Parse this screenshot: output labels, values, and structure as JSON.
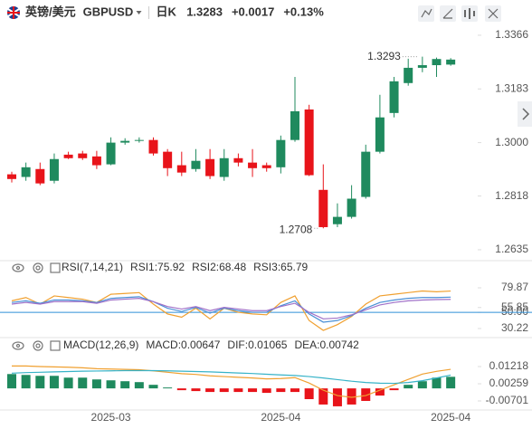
{
  "chart_data": [
    {
      "type": "candlestick",
      "title": "英镑/美元",
      "symbol": "GBPUSD",
      "period": "日K",
      "price": "1.3283",
      "change": "+0.0017",
      "change_pct": "+0.13%",
      "categories": [
        null,
        null,
        null,
        null,
        null,
        null,
        null,
        "2025-03",
        null,
        null,
        null,
        null,
        null,
        null,
        null,
        null,
        null,
        null,
        null,
        "2025-04",
        null,
        null,
        null,
        null,
        null,
        null,
        null,
        null,
        null,
        null,
        null,
        "2025-04"
      ],
      "open": [
        1.2892,
        1.2883,
        1.291,
        1.287,
        1.2959,
        1.2963,
        1.2953,
        1.2926,
        1.3,
        1.3006,
        1.3009,
        1.2969,
        1.2923,
        1.291,
        1.2944,
        1.2883,
        1.2947,
        1.2932,
        1.2923,
        1.2916,
        1.3009,
        1.3113,
        1.2839,
        1.2722,
        1.2747,
        1.2815,
        1.2969,
        1.3101,
        1.3203,
        1.3255,
        1.3264,
        1.3266
      ],
      "high": [
        1.2901,
        1.2932,
        1.2932,
        1.2963,
        1.2969,
        1.2972,
        1.2972,
        1.3018,
        1.3015,
        1.3018,
        1.3018,
        1.2978,
        1.2969,
        1.2978,
        1.2978,
        1.2978,
        1.2963,
        1.2978,
        1.2932,
        1.3024,
        1.3224,
        1.3129,
        1.2926,
        1.2793,
        1.2855,
        1.2993,
        1.3163,
        1.3224,
        1.3286,
        1.3293,
        1.329,
        1.3288
      ],
      "low": [
        1.2864,
        1.287,
        1.2855,
        1.2861,
        1.2944,
        1.2941,
        1.291,
        1.2923,
        1.2993,
        1.3,
        1.2956,
        1.2886,
        1.2886,
        1.2901,
        1.2876,
        1.287,
        1.2919,
        1.2883,
        1.2901,
        1.2895,
        1.3003,
        1.2886,
        1.2708,
        1.2712,
        1.2741,
        1.2809,
        1.2963,
        1.3086,
        1.3194,
        1.324,
        1.3224,
        1.3262
      ],
      "close": [
        1.2876,
        1.2916,
        1.2861,
        1.2944,
        1.2947,
        1.2947,
        1.2923,
        1.3,
        1.3006,
        1.3009,
        1.2963,
        1.2913,
        1.2898,
        1.2938,
        1.2886,
        1.2947,
        1.2932,
        1.2913,
        1.2913,
        1.3009,
        1.3107,
        1.2889,
        1.2712,
        1.2747,
        1.2809,
        1.2969,
        1.3086,
        1.3209,
        1.3255,
        1.3264,
        1.3285,
        1.3283
      ],
      "up_color": "#1f8a5e",
      "down_color": "#e8141a",
      "high_label": "1.3293",
      "low_label": "1.2708",
      "ylim": [
        1.2607,
        1.3409
      ],
      "yticks": [
        1.2635,
        1.2818,
        {
          "value": 1.3,
          "label": "1.3000"
        },
        1.3183,
        1.3366
      ]
    },
    {
      "type": "line",
      "title": "RSI(7,14,21)",
      "series": [
        {
          "name": "RSI1:75.92",
          "color": "#f0a030",
          "values": [
            64,
            68,
            60,
            70,
            68,
            66,
            62,
            72,
            73,
            74,
            60,
            48,
            44,
            55,
            42,
            55,
            50,
            48,
            47,
            62,
            70,
            40,
            28,
            35,
            45,
            60,
            70,
            72,
            74,
            76,
            75,
            75.92
          ]
        },
        {
          "name": "RSI2:68.48",
          "color": "#4a8fd6",
          "values": [
            62,
            64,
            61,
            65,
            65,
            64,
            62,
            67,
            68,
            69,
            63,
            55,
            51,
            56,
            49,
            55,
            52,
            50,
            50,
            58,
            64,
            48,
            38,
            40,
            46,
            55,
            62,
            65,
            67,
            68,
            68,
            68.48
          ]
        },
        {
          "name": "RSI3:65.79",
          "color": "#a070c8",
          "values": [
            60,
            62,
            60,
            63,
            63,
            63,
            61,
            65,
            66,
            67,
            63,
            57,
            54,
            57,
            52,
            56,
            54,
            52,
            52,
            57,
            61,
            50,
            42,
            43,
            47,
            53,
            59,
            62,
            64,
            65,
            65.5,
            65.79
          ]
        }
      ],
      "hline": 50,
      "hline_color": "#2f8fd8",
      "ylim": [
        22.5,
        93.1
      ],
      "yticks": [
        30.22,
        {
          "value": 50,
          "label": "50.00"
        },
        55.85,
        79.87
      ]
    },
    {
      "type": "macd",
      "title": "MACD(12,26,9)",
      "series": [
        {
          "name": "MACD:0.00647",
          "color": "#a070c8",
          "up_color": "#1f8a5e",
          "down_color": "#e8141a",
          "values": [
            0.008,
            0.0075,
            0.007,
            0.007,
            0.006,
            0.006,
            0.005,
            0.0045,
            0.004,
            0.0035,
            0.002,
            0.0005,
            -0.001,
            -0.0015,
            -0.002,
            -0.002,
            -0.002,
            -0.002,
            -0.0025,
            -0.002,
            -0.002,
            -0.006,
            -0.009,
            -0.01,
            -0.009,
            -0.007,
            -0.004,
            -0.001,
            0.002,
            0.004,
            0.006,
            0.00647
          ]
        },
        {
          "name": "DIF:0.01065",
          "color": "#f0a030",
          "values": [
            0.0125,
            0.0125,
            0.0122,
            0.012,
            0.0118,
            0.0115,
            0.011,
            0.0108,
            0.0106,
            0.0104,
            0.0098,
            0.009,
            0.0082,
            0.0078,
            0.007,
            0.0066,
            0.0062,
            0.0058,
            0.0053,
            0.0055,
            0.006,
            0.003,
            -0.001,
            -0.004,
            -0.005,
            -0.004,
            -0.001,
            0.002,
            0.005,
            0.008,
            0.0095,
            0.01065
          ]
        },
        {
          "name": "DEA:0.00742",
          "color": "#37b3c8",
          "values": [
            0.0085,
            0.0088,
            0.009,
            0.0092,
            0.0094,
            0.0096,
            0.0097,
            0.0098,
            0.0099,
            0.0099,
            0.0099,
            0.0098,
            0.0096,
            0.0094,
            0.0092,
            0.0089,
            0.0086,
            0.0083,
            0.0079,
            0.0075,
            0.0072,
            0.0066,
            0.0058,
            0.0049,
            0.004,
            0.0033,
            0.0029,
            0.0028,
            0.0033,
            0.0043,
            0.0058,
            0.00742
          ]
        }
      ],
      "ylim": [
        -0.01155,
        0.01875
      ],
      "yticks": [
        -0.00701,
        0.00259,
        0.01218
      ]
    }
  ]
}
